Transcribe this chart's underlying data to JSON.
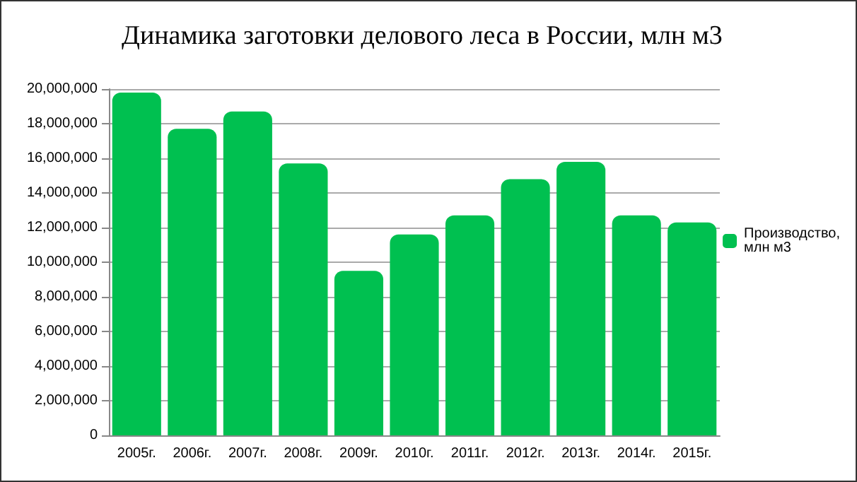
{
  "chart_data": {
    "type": "bar",
    "title": "Динамика заготовки делового леса в России, млн м3",
    "categories": [
      "2005г.",
      "2006г.",
      "2007г.",
      "2008г.",
      "2009г.",
      "2010г.",
      "2011г.",
      "2012г.",
      "2013г.",
      "2014г.",
      "2015г."
    ],
    "series": [
      {
        "name": "Производство, млн м3",
        "color": "#00c050",
        "values": [
          19800000,
          17700000,
          18700000,
          15700000,
          9500000,
          11600000,
          12700000,
          14800000,
          15800000,
          12700000,
          12300000
        ]
      }
    ],
    "ylim": [
      0,
      20000000
    ],
    "yticks": [
      0,
      {
        "value": 2000000,
        "label": "2,000,000"
      },
      {
        "value": 4000000,
        "label": "4,000,000"
      },
      {
        "value": 6000000,
        "label": "6,000,000"
      },
      {
        "value": 8000000,
        "label": "8,000,000"
      },
      {
        "value": 10000000,
        "label": "10,000,000"
      },
      {
        "value": 12000000,
        "label": "12,000,000"
      },
      {
        "value": 14000000,
        "label": "14,000,000"
      },
      {
        "value": 16000000,
        "label": "16,000,000"
      },
      {
        "value": 18000000,
        "label": "18,000,000"
      },
      {
        "value": 20000000,
        "label": "20,000,000"
      }
    ],
    "grid": "y",
    "legend": "right"
  }
}
